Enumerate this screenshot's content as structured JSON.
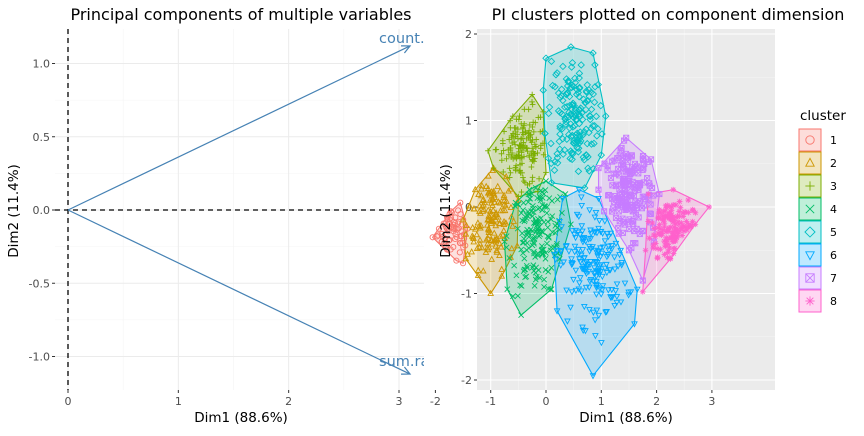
{
  "chart_data": [
    {
      "type": "scatter",
      "subtype": "pca-variable-arrows",
      "title": "Principal components of multiple variables",
      "xlabel": "Dim1 (88.6%)",
      "ylabel": "Dim2 (11.4%)",
      "xlim": [
        0,
        3.3
      ],
      "ylim": [
        -1.2,
        1.2
      ],
      "x_ticks": [
        0,
        1,
        2,
        3
      ],
      "y_ticks": [
        1.0,
        0.5,
        0.0,
        -0.5,
        -1.0
      ],
      "x_tick_labels": [
        "0",
        "1",
        "2",
        "3"
      ],
      "y_tick_labels": [
        "1.0",
        "0.5",
        "0.0",
        "-0.5",
        "-1.0"
      ],
      "grid": true,
      "reference_lines": {
        "x": 0,
        "y": 0,
        "style": "dashed"
      },
      "arrow_color": "#4682B4",
      "arrows": [
        {
          "label": "count.ra",
          "x": 3.1,
          "y": 1.12
        },
        {
          "label": "sum.ra",
          "x": 3.1,
          "y": -1.12
        }
      ]
    },
    {
      "type": "scatter",
      "subtype": "cluster-hulls",
      "title": "PI clusters plotted on component dimension",
      "xlabel": "Dim1 (88.6%)",
      "ylabel": "Dim2 (11.4%)",
      "xlim": [
        -2.3,
        3.2
      ],
      "ylim": [
        -2.1,
        2.05
      ],
      "x_ticks": [
        -2,
        -1,
        0,
        1,
        2,
        3
      ],
      "y_ticks": [
        2,
        1,
        0,
        -1,
        -2
      ],
      "x_tick_labels": [
        "-2",
        "-1",
        "0",
        "1",
        "2",
        "3"
      ],
      "y_tick_labels": [
        "2",
        "1",
        "0",
        "-1",
        "-2"
      ],
      "grid": true,
      "panel_background": "#EBEBEB",
      "legend": {
        "title": "cluster",
        "position": "right"
      },
      "series": [
        {
          "name": "1",
          "color": "#F8766D",
          "shape": "circle-open",
          "hull": [
            [
              -2.05,
              -0.35
            ],
            [
              -1.72,
              -0.05
            ],
            [
              -1.55,
              0.05
            ],
            [
              -1.42,
              -0.25
            ],
            [
              -1.5,
              -0.65
            ],
            [
              -1.62,
              -0.62
            ]
          ],
          "center": [
            -1.72,
            -0.3
          ],
          "spread": [
            0.2,
            0.17
          ],
          "n": 60
        },
        {
          "name": "2",
          "color": "#CD9600",
          "shape": "triangle-open",
          "hull": [
            [
              -1.5,
              -0.15
            ],
            [
              -1.28,
              0.2
            ],
            [
              -0.95,
              0.45
            ],
            [
              -0.72,
              0.35
            ],
            [
              -0.5,
              0.08
            ],
            [
              -0.52,
              -0.45
            ],
            [
              -0.8,
              -0.8
            ],
            [
              -1.0,
              -1.0
            ],
            [
              -1.45,
              -0.6
            ]
          ],
          "center": [
            -1.0,
            -0.1
          ],
          "spread": [
            0.22,
            0.3
          ],
          "n": 140
        },
        {
          "name": "3",
          "color": "#7CAE00",
          "shape": "plus",
          "hull": [
            [
              -1.05,
              0.65
            ],
            [
              -0.6,
              1.05
            ],
            [
              -0.25,
              1.3
            ],
            [
              -0.05,
              1.1
            ],
            [
              0.0,
              0.4
            ],
            [
              -0.15,
              0.18
            ],
            [
              -0.5,
              0.12
            ],
            [
              -0.95,
              0.45
            ]
          ],
          "center": [
            -0.45,
            0.68
          ],
          "spread": [
            0.22,
            0.23
          ],
          "n": 150
        },
        {
          "name": "4",
          "color": "#00BE67",
          "shape": "x",
          "hull": [
            [
              -0.55,
              0.05
            ],
            [
              -0.3,
              0.2
            ],
            [
              0.0,
              0.3
            ],
            [
              0.35,
              0.15
            ],
            [
              0.45,
              -0.2
            ],
            [
              0.1,
              -0.95
            ],
            [
              -0.45,
              -1.25
            ],
            [
              -0.7,
              -0.95
            ],
            [
              -0.75,
              -0.4
            ]
          ],
          "center": [
            -0.15,
            -0.35
          ],
          "spread": [
            0.27,
            0.33
          ],
          "n": 170
        },
        {
          "name": "5",
          "color": "#00BFC4",
          "shape": "diamond-open",
          "hull": [
            [
              -0.05,
              1.35
            ],
            [
              0.0,
              1.72
            ],
            [
              0.45,
              1.85
            ],
            [
              0.85,
              1.78
            ],
            [
              1.08,
              1.05
            ],
            [
              1.0,
              0.6
            ],
            [
              0.7,
              0.22
            ],
            [
              0.1,
              0.28
            ],
            [
              -0.02,
              0.85
            ]
          ],
          "center": [
            0.5,
            1.05
          ],
          "spread": [
            0.24,
            0.33
          ],
          "n": 170
        },
        {
          "name": "6",
          "color": "#00A9FF",
          "shape": "triangle-down-open",
          "hull": [
            [
              0.3,
              0.1
            ],
            [
              0.6,
              0.2
            ],
            [
              0.95,
              0.1
            ],
            [
              1.35,
              -0.5
            ],
            [
              1.65,
              -0.95
            ],
            [
              1.6,
              -1.35
            ],
            [
              0.85,
              -1.95
            ],
            [
              0.2,
              -1.2
            ],
            [
              0.15,
              -0.55
            ]
          ],
          "center": [
            0.85,
            -0.65
          ],
          "spread": [
            0.3,
            0.35
          ],
          "n": 180
        },
        {
          "name": "7",
          "color": "#C77CFF",
          "shape": "square-cross",
          "hull": [
            [
              0.95,
              0.45
            ],
            [
              1.45,
              0.8
            ],
            [
              1.9,
              0.55
            ],
            [
              2.05,
              0.15
            ],
            [
              1.95,
              -0.4
            ],
            [
              1.75,
              -0.85
            ],
            [
              1.5,
              -0.5
            ],
            [
              1.05,
              -0.05
            ],
            [
              0.95,
              0.2
            ]
          ],
          "center": [
            1.5,
            0.15
          ],
          "spread": [
            0.22,
            0.28
          ],
          "n": 170
        },
        {
          "name": "8",
          "color": "#FF61CC",
          "shape": "asterisk",
          "hull": [
            [
              1.85,
              0.15
            ],
            [
              2.3,
              0.2
            ],
            [
              2.95,
              0.0
            ],
            [
              2.7,
              -0.2
            ],
            [
              2.25,
              -0.6
            ],
            [
              1.75,
              -0.98
            ],
            [
              1.8,
              -0.5
            ]
          ],
          "center": [
            2.3,
            -0.28
          ],
          "spread": [
            0.24,
            0.22
          ],
          "n": 140
        }
      ]
    }
  ]
}
